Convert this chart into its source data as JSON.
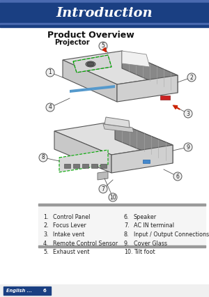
{
  "title_text": "Introduction",
  "title_bg_color": "#1a3f82",
  "title_stripe_top": "#4a6ab0",
  "title_stripe_bot": "#4a6ab0",
  "title_text_color": "#ffffff",
  "section_title": "Product Overview",
  "sub_title": "Projector",
  "bg_color": "#ffffff",
  "list_left": [
    [
      "1.",
      "Control Panel"
    ],
    [
      "2.",
      "Focus Lever"
    ],
    [
      "3.",
      "Intake vent"
    ],
    [
      "4.",
      "Remote Control Sensor"
    ],
    [
      "5.",
      "Exhaust vent"
    ]
  ],
  "list_right": [
    [
      "6.",
      "Speaker"
    ],
    [
      "7.",
      "AC IN terminal"
    ],
    [
      "8.",
      "Input / Output Connections"
    ],
    [
      "9.",
      "Cover Glass"
    ],
    [
      "10.",
      "Tilt foot"
    ]
  ],
  "footer_text": "English ...",
  "footer_page": "6",
  "footer_bg": "#1a3f82",
  "stripe_color": "#9a9a9a",
  "list_bg": "#f5f5f5"
}
